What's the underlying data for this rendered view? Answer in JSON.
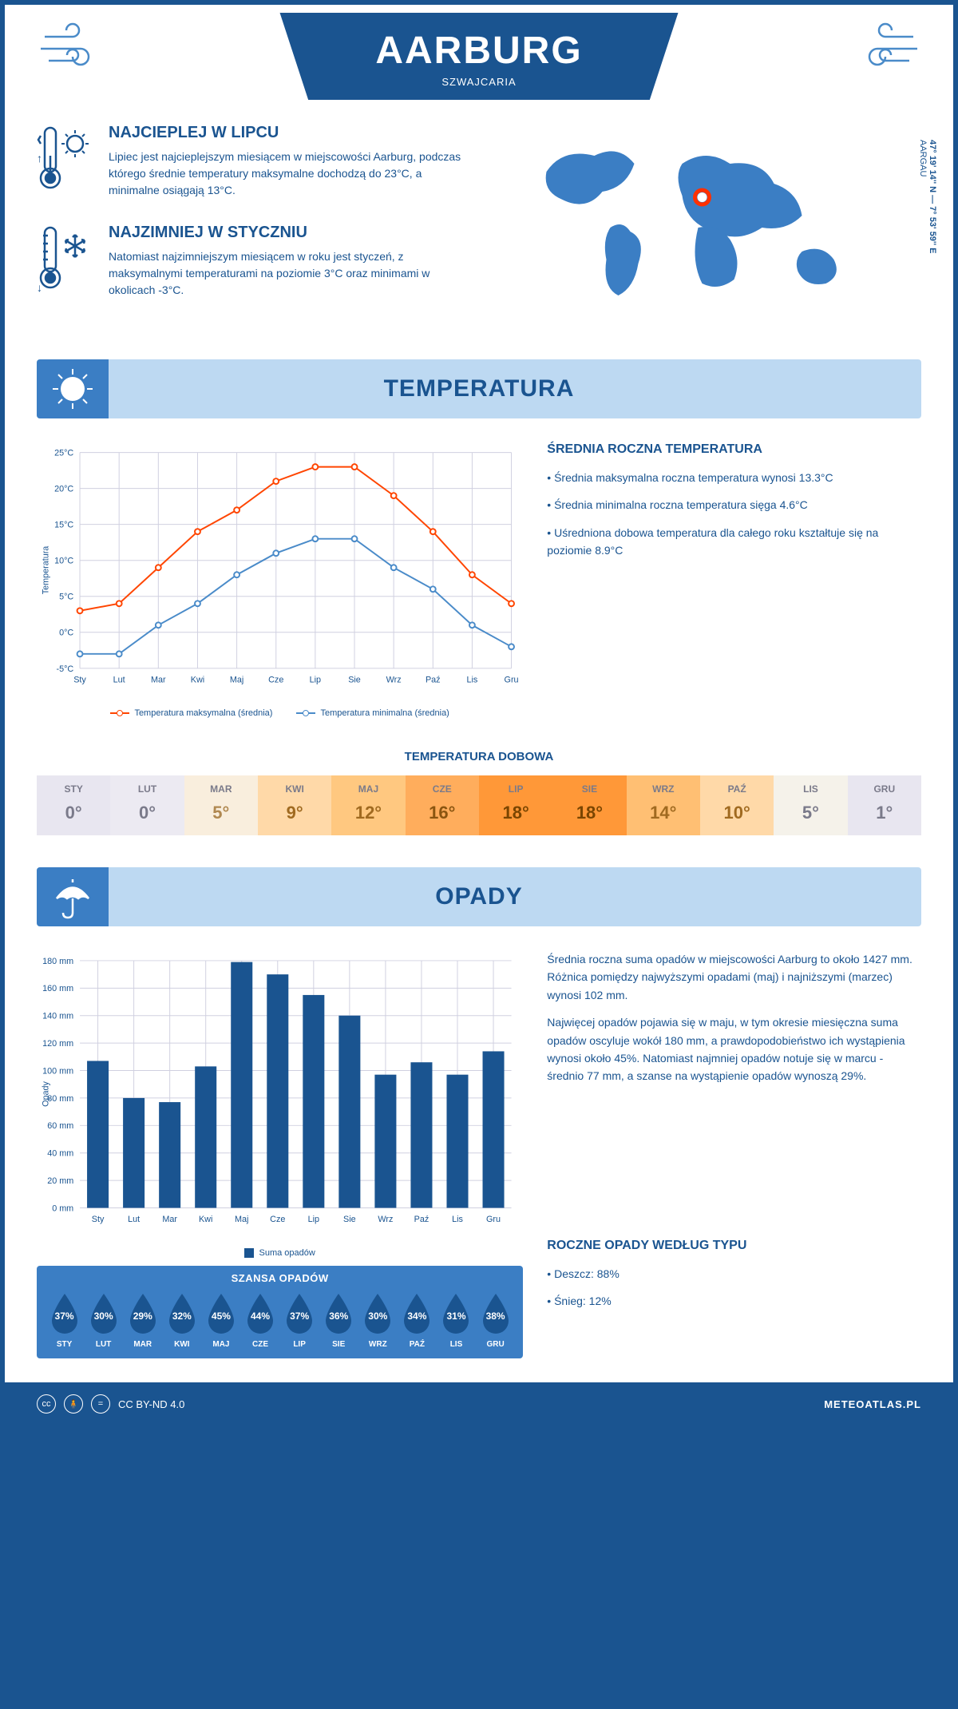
{
  "header": {
    "city": "AARBURG",
    "country": "SZWAJCARIA"
  },
  "coords": {
    "text": "47° 19' 14'' N — 7° 53' 59'' E",
    "region": "AARGAU"
  },
  "facts": {
    "hot": {
      "title": "NAJCIEPLEJ W LIPCU",
      "body": "Lipiec jest najcieplejszym miesiącem w miejscowości Aarburg, podczas którego średnie temperatury maksymalne dochodzą do 23°C, a minimalne osiągają 13°C."
    },
    "cold": {
      "title": "NAJZIMNIEJ W STYCZNIU",
      "body": "Natomiast najzimniejszym miesiącem w roku jest styczeń, z maksymalnymi temperaturami na poziomie 3°C oraz minimami w okolicach -3°C."
    }
  },
  "temperature": {
    "section_title": "TEMPERATURA",
    "annual_title": "ŚREDNIA ROCZNA TEMPERATURA",
    "bullets": [
      "• Średnia maksymalna roczna temperatura wynosi 13.3°C",
      "• Średnia minimalna roczna temperatura sięga 4.6°C",
      "• Uśredniona dobowa temperatura dla całego roku kształtuje się na poziomie 8.9°C"
    ],
    "chart": {
      "months": [
        "Sty",
        "Lut",
        "Mar",
        "Kwi",
        "Maj",
        "Cze",
        "Lip",
        "Sie",
        "Wrz",
        "Paź",
        "Lis",
        "Gru"
      ],
      "max_series": [
        3,
        4,
        9,
        14,
        17,
        21,
        23,
        23,
        19,
        14,
        8,
        4
      ],
      "min_series": [
        -3,
        -3,
        1,
        4,
        8,
        11,
        13,
        13,
        9,
        6,
        1,
        -2
      ],
      "max_color": "#ff4500",
      "min_color": "#4a8bc9",
      "ylabel": "Temperatura",
      "ylim": [
        -5,
        25
      ],
      "ytick_step": 5,
      "grid_color": "#d0d0e0",
      "legend_max": "Temperatura maksymalna (średnia)",
      "legend_min": "Temperatura minimalna (średnia)"
    },
    "daily_title": "TEMPERATURA DOBOWA",
    "daily": {
      "months": [
        "STY",
        "LUT",
        "MAR",
        "KWI",
        "MAJ",
        "CZE",
        "LIP",
        "SIE",
        "WRZ",
        "PAŹ",
        "LIS",
        "GRU"
      ],
      "values": [
        "0°",
        "0°",
        "5°",
        "9°",
        "12°",
        "16°",
        "18°",
        "18°",
        "14°",
        "10°",
        "5°",
        "1°"
      ],
      "colors": [
        "#e8e6f0",
        "#eceaf2",
        "#f9eedd",
        "#ffd9a8",
        "#ffc880",
        "#ffad5c",
        "#ff9838",
        "#ff9838",
        "#ffbf73",
        "#ffd9a8",
        "#f5f2ea",
        "#e8e6f0"
      ],
      "text_colors": [
        "#7a7a8a",
        "#7a7a8a",
        "#b08850",
        "#a06a20",
        "#a06a20",
        "#8a5510",
        "#7a4500",
        "#7a4500",
        "#a06a20",
        "#a06a20",
        "#7a7a8a",
        "#7a7a8a"
      ]
    }
  },
  "precipitation": {
    "section_title": "OPADY",
    "para1": "Średnia roczna suma opadów w miejscowości Aarburg to około 1427 mm. Różnica pomiędzy najwyższymi opadami (maj) i najniższymi (marzec) wynosi 102 mm.",
    "para2": "Najwięcej opadów pojawia się w maju, w tym okresie miesięczna suma opadów oscyluje wokół 180 mm, a prawdopodobieństwo ich wystąpienia wynosi około 45%. Natomiast najmniej opadów notuje się w marcu - średnio 77 mm, a szanse na wystąpienie opadów wynoszą 29%.",
    "chart": {
      "months": [
        "Sty",
        "Lut",
        "Mar",
        "Kwi",
        "Maj",
        "Cze",
        "Lip",
        "Sie",
        "Wrz",
        "Paź",
        "Lis",
        "Gru"
      ],
      "values": [
        107,
        80,
        77,
        103,
        179,
        170,
        155,
        140,
        97,
        106,
        97,
        114
      ],
      "bar_color": "#1a5490",
      "ylabel": "Opady",
      "ylim": [
        0,
        180
      ],
      "ytick_step": 20,
      "grid_color": "#d0d0e0",
      "legend": "Suma opadów"
    },
    "chance_title": "SZANSA OPADÓW",
    "chance": {
      "months": [
        "STY",
        "LUT",
        "MAR",
        "KWI",
        "MAJ",
        "CZE",
        "LIP",
        "SIE",
        "WRZ",
        "PAŹ",
        "LIS",
        "GRU"
      ],
      "pct": [
        "37%",
        "30%",
        "29%",
        "32%",
        "45%",
        "44%",
        "37%",
        "36%",
        "30%",
        "34%",
        "31%",
        "38%"
      ],
      "drop_color": "#1a5490"
    },
    "type_title": "ROCZNE OPADY WEDŁUG TYPU",
    "type_lines": [
      "• Deszcz: 88%",
      "• Śnieg: 12%"
    ]
  },
  "footer": {
    "license": "CC BY-ND 4.0",
    "site": "METEOATLAS.PL"
  }
}
